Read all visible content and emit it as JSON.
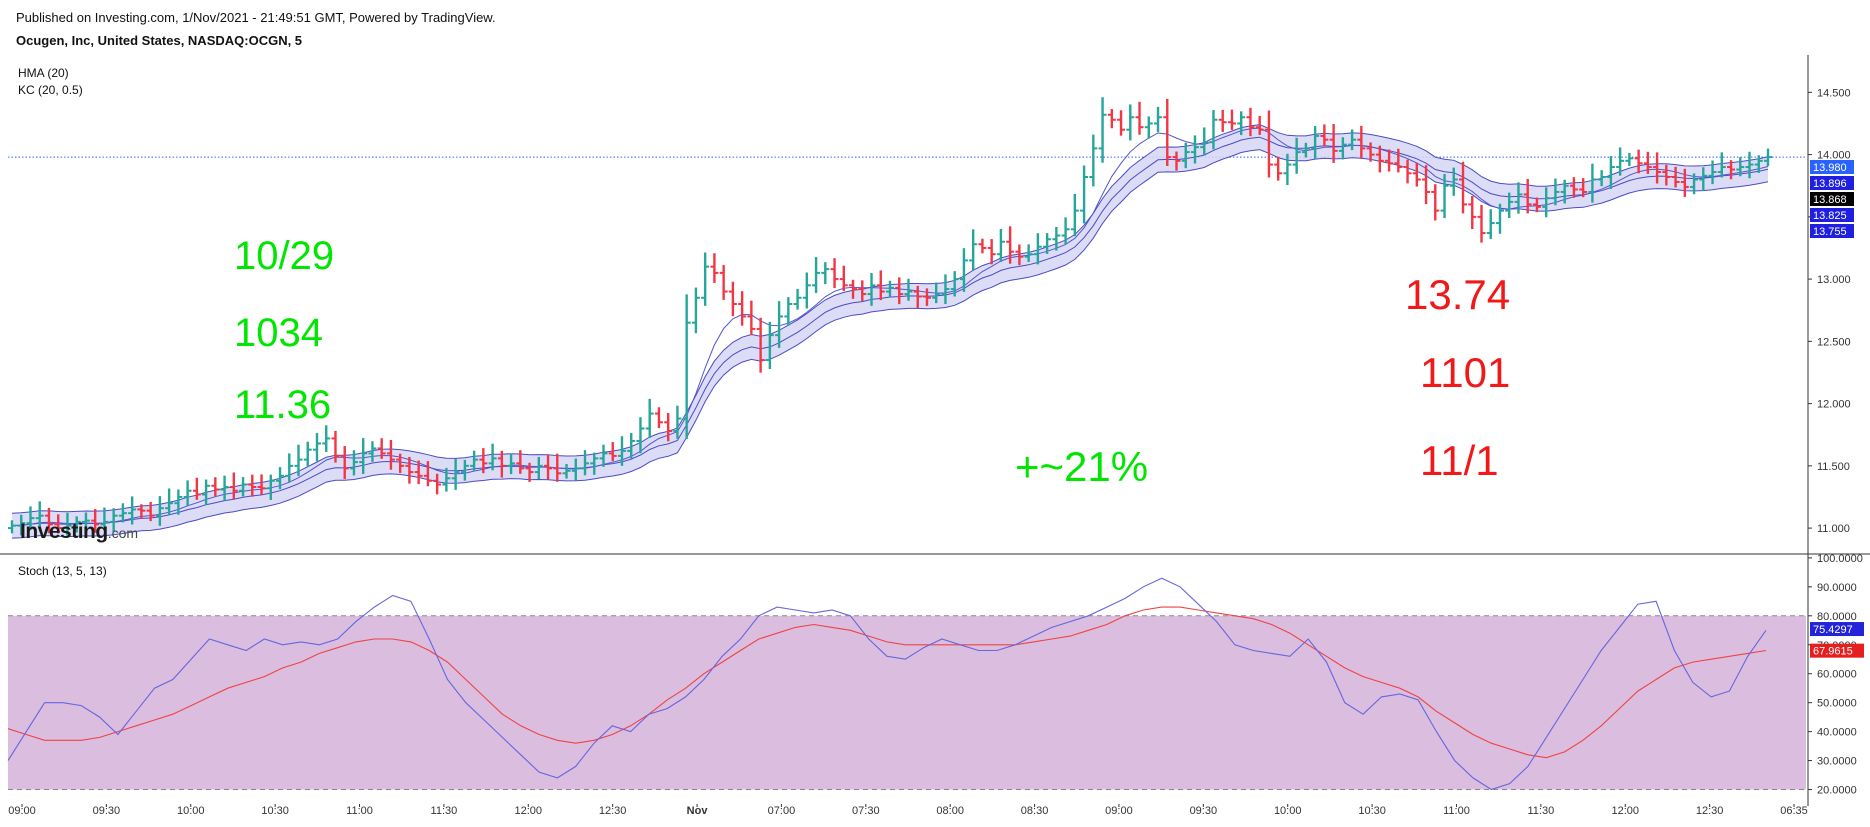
{
  "header": {
    "published": "Published on Investing.com, 1/Nov/2021 - 21:49:51 GMT, Powered by TradingView.",
    "symbol": "Ocugen, Inc, United States, NASDAQ:OCGN, 5"
  },
  "indicators": {
    "hma": "HMA (20)",
    "kc": "KC (20, 0.5)",
    "stoch": "Stoch (13, 5, 13)"
  },
  "logo": {
    "main": "Investing",
    "suffix": ".com"
  },
  "annotations": {
    "left_date": "10/29",
    "left_time": "1034",
    "left_price": "11.36",
    "change": "+~21%",
    "right_price": "13.74",
    "right_time": "1101",
    "right_date": "11/1"
  },
  "colors": {
    "up": "#26a69a",
    "down": "#f23645",
    "hma": "#5555cc",
    "kc_fill": "#d6d6f5",
    "stoch_k": "#6666dd",
    "stoch_d": "#ee4444",
    "stoch_band": "#dbbddf",
    "annot_green": "#00e600",
    "annot_red": "#f01818"
  },
  "chart_data": [
    {
      "type": "ohlc",
      "y_ticks": [
        "14.500",
        "14.000",
        "13.500",
        "13.000",
        "12.500",
        "12.000",
        "11.500",
        "11.000"
      ],
      "y_range": [
        10.8,
        14.8
      ],
      "x_ticks": [
        "09:00",
        "09:30",
        "10:00",
        "10:30",
        "11:00",
        "11:30",
        "12:00",
        "12:30",
        "Nov",
        "07:00",
        "07:30",
        "08:00",
        "08:30",
        "09:00",
        "09:30",
        "10:00",
        "10:30",
        "11:00",
        "11:30",
        "12:00",
        "12:30",
        "06:35"
      ],
      "last_price": 13.98,
      "price_labels": [
        {
          "value": "13.980",
          "color": "#2962ff"
        },
        {
          "value": "13.896",
          "color": "#1f1fe0"
        },
        {
          "value": "13.868",
          "color": "#000000"
        },
        {
          "value": "13.825",
          "color": "#1f1fe0"
        },
        {
          "value": "13.755",
          "color": "#1f1fe0"
        }
      ],
      "close": [
        11.02,
        11.04,
        11.08,
        11.1,
        11.03,
        11.0,
        11.02,
        11.05,
        11.06,
        11.03,
        11.05,
        11.1,
        11.12,
        11.15,
        11.14,
        11.1,
        11.16,
        11.2,
        11.25,
        11.3,
        11.27,
        11.34,
        11.31,
        11.33,
        11.3,
        11.35,
        11.33,
        11.32,
        11.38,
        11.42,
        11.5,
        11.55,
        11.63,
        11.68,
        11.72,
        11.58,
        11.48,
        11.53,
        11.6,
        11.64,
        11.6,
        11.55,
        11.5,
        11.45,
        11.42,
        11.38,
        11.35,
        11.4,
        11.45,
        11.5,
        11.55,
        11.52,
        11.56,
        11.5,
        11.52,
        11.48,
        11.45,
        11.5,
        11.48,
        11.44,
        11.46,
        11.48,
        11.52,
        11.56,
        11.6,
        11.58,
        11.62,
        11.7,
        11.8,
        11.92,
        11.85,
        11.78,
        11.88,
        12.65,
        12.85,
        13.1,
        13.05,
        12.9,
        12.8,
        12.7,
        12.6,
        12.35,
        12.55,
        12.7,
        12.8,
        12.85,
        12.95,
        13.05,
        13.08,
        13.0,
        12.95,
        12.92,
        12.88,
        12.95,
        12.9,
        12.93,
        12.88,
        12.9,
        12.86,
        12.85,
        12.88,
        12.92,
        13.0,
        13.15,
        13.28,
        13.25,
        13.2,
        13.3,
        13.22,
        13.18,
        13.2,
        13.26,
        13.32,
        13.35,
        13.4,
        13.55,
        13.82,
        14.05,
        14.32,
        14.28,
        14.2,
        14.3,
        14.22,
        14.25,
        14.3,
        13.98,
        13.95,
        14.02,
        14.06,
        14.1,
        14.28,
        14.26,
        14.25,
        14.3,
        14.22,
        14.2,
        13.92,
        13.85,
        13.92,
        14.02,
        14.05,
        14.15,
        14.12,
        14.03,
        14.08,
        14.12,
        14.05,
        14.0,
        13.95,
        13.93,
        13.9,
        13.85,
        13.8,
        13.7,
        13.55,
        13.75,
        13.8,
        13.6,
        13.5,
        13.37,
        13.45,
        13.55,
        13.62,
        13.68,
        13.6,
        13.58,
        13.65,
        13.7,
        13.75,
        13.72,
        13.7,
        13.8,
        13.82,
        13.9,
        13.95,
        13.97,
        13.93,
        13.9,
        13.86,
        13.82,
        13.78,
        13.74,
        13.8,
        13.83,
        13.86,
        13.9,
        13.88,
        13.9,
        13.92,
        13.95,
        13.98
      ],
      "stoch": {
        "y_ticks": [
          "100.0000",
          "90.0000",
          "80.0000",
          "70.0000",
          "60.0000",
          "50.0000",
          "40.0000",
          "30.0000",
          "20.0000"
        ],
        "y_range": [
          15,
          101
        ],
        "band": [
          20,
          80
        ],
        "k_label": "75.4297",
        "d_label": "67.9615",
        "k": [
          30,
          40,
          50,
          50,
          49,
          45,
          39,
          47,
          55,
          58,
          65,
          72,
          70,
          68,
          72,
          70,
          71,
          70,
          72,
          78,
          83,
          87,
          85,
          72,
          58,
          50,
          44,
          38,
          32,
          26,
          24,
          28,
          36,
          42,
          40,
          46,
          48,
          52,
          58,
          66,
          72,
          80,
          83,
          82,
          81,
          82,
          80,
          72,
          66,
          65,
          69,
          72,
          70,
          68,
          68,
          70,
          73,
          76,
          78,
          80,
          83,
          86,
          90,
          93,
          90,
          84,
          78,
          70,
          68,
          67,
          66,
          72,
          64,
          50,
          46,
          52,
          53,
          51,
          40,
          30,
          24,
          20,
          22,
          28,
          38,
          48,
          58,
          68,
          76,
          84,
          85,
          68,
          57,
          52,
          54,
          66,
          75
        ],
        "d": [
          41,
          39,
          37,
          37,
          37,
          38,
          40,
          42,
          44,
          46,
          49,
          52,
          55,
          57,
          59,
          62,
          64,
          67,
          69,
          71,
          72,
          72,
          71,
          68,
          64,
          58,
          52,
          46,
          42,
          39,
          37,
          36,
          37,
          39,
          42,
          46,
          51,
          55,
          60,
          64,
          68,
          72,
          74,
          76,
          77,
          76,
          75,
          73,
          71,
          70,
          70,
          70,
          70,
          70,
          70,
          70,
          71,
          72,
          73,
          75,
          77,
          80,
          82,
          83,
          83,
          82,
          81,
          80,
          79,
          77,
          74,
          70,
          66,
          62,
          59,
          57,
          55,
          52,
          47,
          43,
          39,
          36,
          34,
          32,
          31,
          33,
          37,
          42,
          48,
          54,
          58,
          62,
          64,
          65,
          66,
          67,
          68
        ]
      }
    }
  ]
}
